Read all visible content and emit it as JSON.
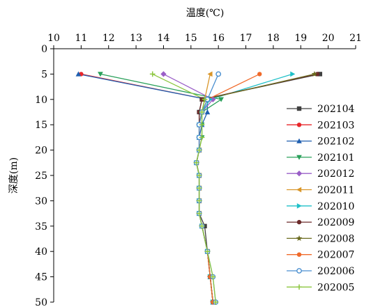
{
  "chart_data": {
    "type": "line",
    "title": "",
    "xlabel": "温度(℃)",
    "ylabel": "深度(m)",
    "x_axis_position": "top",
    "y_axis_inverted": true,
    "xlim": [
      10,
      21
    ],
    "ylim": [
      0,
      50
    ],
    "xticks": [
      10,
      11,
      12,
      13,
      14,
      15,
      16,
      17,
      18,
      19,
      20,
      21
    ],
    "yticks": [
      0,
      5,
      10,
      15,
      20,
      25,
      30,
      35,
      40,
      45,
      50
    ],
    "grid": false,
    "legend": "right",
    "depths": [
      5,
      10,
      12.5,
      15,
      17.5,
      20,
      22.5,
      25,
      27.5,
      30,
      32.5,
      35,
      40,
      45,
      50
    ],
    "series": [
      {
        "name": "202104",
        "color": "#404040",
        "marker": "square",
        "values": [
          19.7,
          15.4,
          15.3,
          15.3,
          15.3,
          15.3,
          15.2,
          15.3,
          15.3,
          15.3,
          15.3,
          15.5,
          15.6,
          15.7,
          15.8
        ]
      },
      {
        "name": "202103",
        "color": "#e8262a",
        "marker": "circle",
        "values": [
          11.0,
          15.6,
          15.4,
          15.3,
          15.3,
          15.3,
          15.2,
          15.3,
          15.3,
          15.3,
          15.3,
          15.4,
          15.6,
          15.7,
          15.8
        ]
      },
      {
        "name": "202102",
        "color": "#1f5fb0",
        "marker": "triangle-up",
        "values": [
          10.9,
          15.6,
          15.6,
          15.4,
          15.3,
          15.3,
          15.2,
          15.3,
          15.3,
          15.3,
          15.3,
          15.4,
          15.6,
          15.7,
          15.8
        ]
      },
      {
        "name": "202101",
        "color": "#2aa05a",
        "marker": "triangle-down",
        "values": [
          11.7,
          16.1,
          15.4,
          15.4,
          15.4,
          15.3,
          15.2,
          15.3,
          15.3,
          15.3,
          15.3,
          15.4,
          15.6,
          15.7,
          15.8
        ]
      },
      {
        "name": "202012",
        "color": "#9a5fc7",
        "marker": "diamond",
        "values": [
          14.0,
          15.8,
          15.4,
          15.3,
          15.3,
          15.3,
          15.2,
          15.3,
          15.3,
          15.3,
          15.3,
          15.4,
          15.6,
          15.7,
          15.8
        ]
      },
      {
        "name": "202011",
        "color": "#d9962a",
        "marker": "triangle-left",
        "values": [
          15.7,
          15.5,
          15.4,
          15.3,
          15.3,
          15.3,
          15.2,
          15.3,
          15.3,
          15.3,
          15.3,
          15.4,
          15.6,
          15.7,
          15.8
        ]
      },
      {
        "name": "202010",
        "color": "#1fc0c8",
        "marker": "triangle-right",
        "values": [
          18.7,
          15.7,
          15.4,
          15.3,
          15.3,
          15.3,
          15.2,
          15.3,
          15.3,
          15.3,
          15.3,
          15.4,
          15.6,
          15.7,
          15.8
        ]
      },
      {
        "name": "202009",
        "color": "#6b2a2a",
        "marker": "circle",
        "values": [
          19.6,
          15.4,
          15.3,
          15.3,
          15.3,
          15.3,
          15.2,
          15.3,
          15.3,
          15.3,
          15.3,
          15.4,
          15.6,
          15.7,
          15.8
        ]
      },
      {
        "name": "202008",
        "color": "#6b6b1f",
        "marker": "star",
        "values": [
          19.5,
          15.5,
          15.4,
          15.3,
          15.3,
          15.3,
          15.2,
          15.3,
          15.3,
          15.3,
          15.3,
          15.4,
          15.6,
          15.7,
          15.8
        ]
      },
      {
        "name": "202007",
        "color": "#f06a2a",
        "marker": "circle",
        "values": [
          17.5,
          15.6,
          15.4,
          15.3,
          15.3,
          15.3,
          15.2,
          15.3,
          15.3,
          15.3,
          15.3,
          15.4,
          15.6,
          15.7,
          15.8
        ]
      },
      {
        "name": "202006",
        "color": "#4a8fd0",
        "marker": "circle-open",
        "values": [
          16.0,
          15.6,
          15.4,
          15.3,
          15.3,
          15.3,
          15.2,
          15.3,
          15.3,
          15.3,
          15.3,
          15.4,
          15.6,
          15.8,
          15.9
        ]
      },
      {
        "name": "202005",
        "color": "#8cc63f",
        "marker": "plus",
        "values": [
          13.6,
          15.5,
          15.4,
          15.4,
          15.4,
          15.3,
          15.2,
          15.3,
          15.3,
          15.3,
          15.3,
          15.4,
          15.6,
          15.8,
          15.9
        ]
      }
    ]
  }
}
